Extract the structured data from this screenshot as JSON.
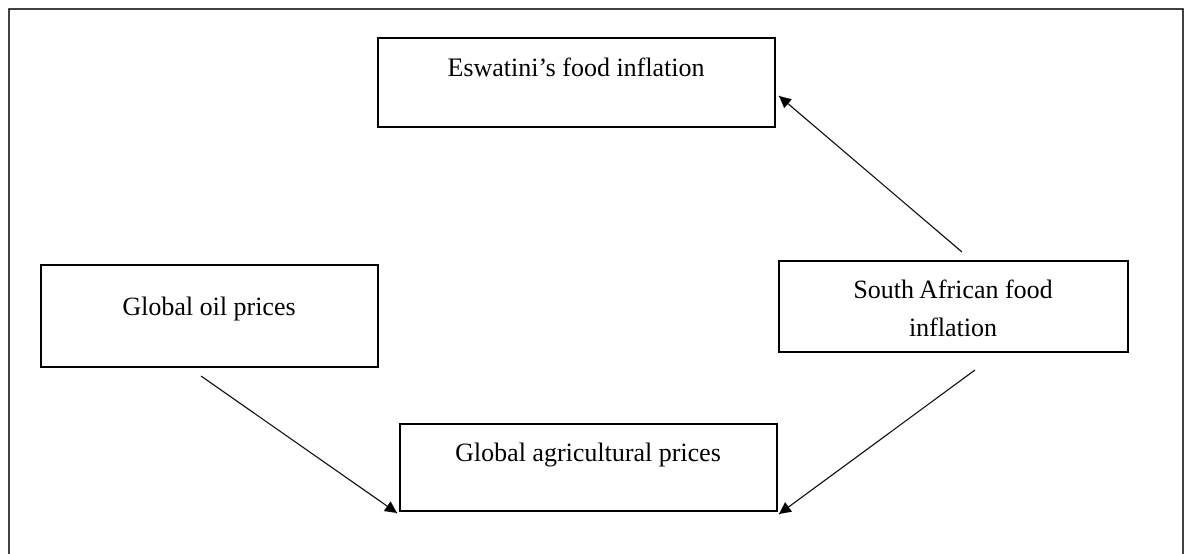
{
  "nodes": [
    {
      "label": [
        "Eswatini’s food inflation"
      ]
    },
    {
      "label": [
        "Global oil prices"
      ]
    },
    {
      "label": [
        "South African food",
        "inflation"
      ]
    },
    {
      "label": [
        "Global agricultural prices"
      ]
    }
  ]
}
